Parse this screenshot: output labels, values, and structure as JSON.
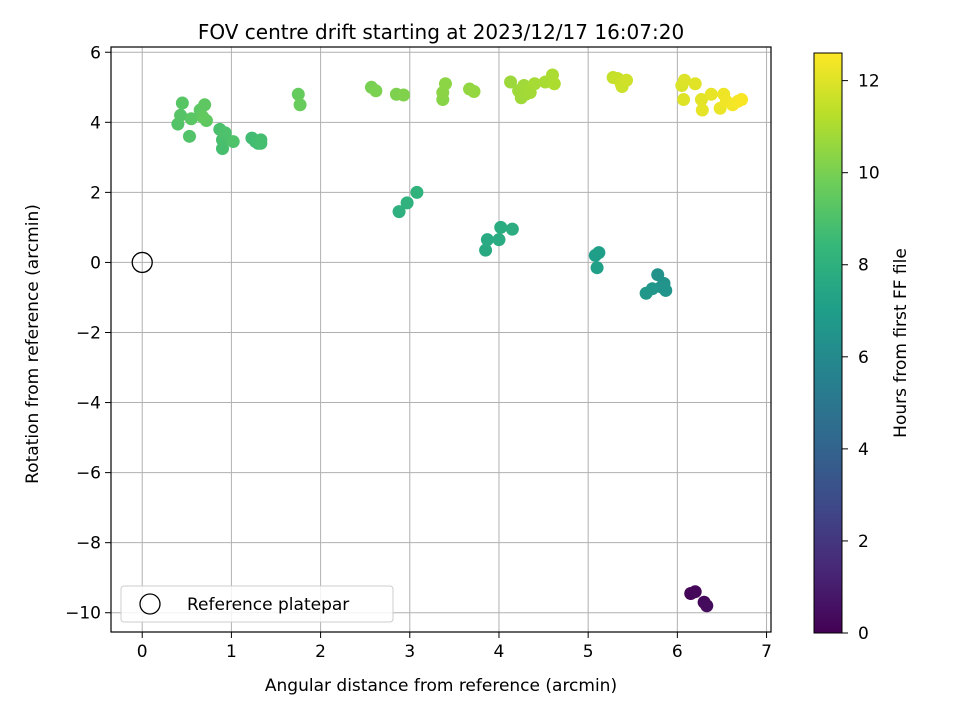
{
  "chart_data": {
    "type": "scatter",
    "title": "FOV centre drift starting at 2023/12/17 16:07:20",
    "xlabel": "Angular distance from reference (arcmin)",
    "ylabel": "Rotation from reference (arcmin)",
    "xlim": [
      -0.35,
      7.05
    ],
    "ylim": [
      -10.55,
      6.15
    ],
    "xticks": [
      0,
      1,
      2,
      3,
      4,
      5,
      6,
      7
    ],
    "yticks": [
      -10,
      -8,
      -6,
      -4,
      -2,
      0,
      2,
      4,
      6
    ],
    "xtick_labels": [
      "0",
      "1",
      "2",
      "3",
      "4",
      "5",
      "6",
      "7"
    ],
    "ytick_labels": [
      "−10",
      "−8",
      "−6",
      "−4",
      "−2",
      "0",
      "2",
      "4",
      "6"
    ],
    "grid": true,
    "legend": {
      "position": "lower-left",
      "entries": [
        {
          "label": "Reference platepar",
          "marker": "open-circle"
        }
      ]
    },
    "reference_point": {
      "x": 0,
      "y": 0
    },
    "colorbar": {
      "label": "Hours from first FF file",
      "range": [
        0,
        12.6
      ],
      "ticks": [
        0,
        2,
        4,
        6,
        8,
        10,
        12
      ],
      "tick_labels": [
        "0",
        "2",
        "4",
        "6",
        "8",
        "10",
        "12"
      ],
      "colormap": [
        "#440154",
        "#482878",
        "#3e4a89",
        "#31688e",
        "#26828e",
        "#1f9e89",
        "#35b779",
        "#6ece58",
        "#b5de2b",
        "#fde725"
      ]
    },
    "points": [
      {
        "x": 6.15,
        "y": -9.45,
        "hours": 0.1
      },
      {
        "x": 6.2,
        "y": -9.4,
        "hours": 0.2
      },
      {
        "x": 6.3,
        "y": -9.7,
        "hours": 0.3
      },
      {
        "x": 6.33,
        "y": -9.8,
        "hours": 0.4
      },
      {
        "x": 5.78,
        "y": -0.35,
        "hours": 6.4
      },
      {
        "x": 5.85,
        "y": -0.6,
        "hours": 6.45
      },
      {
        "x": 5.82,
        "y": -0.7,
        "hours": 6.5
      },
      {
        "x": 5.87,
        "y": -0.8,
        "hours": 6.55
      },
      {
        "x": 5.72,
        "y": -0.75,
        "hours": 6.6
      },
      {
        "x": 5.65,
        "y": -0.88,
        "hours": 6.65
      },
      {
        "x": 5.08,
        "y": 0.2,
        "hours": 7.0
      },
      {
        "x": 5.12,
        "y": 0.28,
        "hours": 7.05
      },
      {
        "x": 5.1,
        "y": -0.15,
        "hours": 7.1
      },
      {
        "x": 3.85,
        "y": 0.35,
        "hours": 7.6
      },
      {
        "x": 3.87,
        "y": 0.65,
        "hours": 7.65
      },
      {
        "x": 4.0,
        "y": 0.65,
        "hours": 7.7
      },
      {
        "x": 4.02,
        "y": 1.0,
        "hours": 7.75
      },
      {
        "x": 4.15,
        "y": 0.95,
        "hours": 7.8
      },
      {
        "x": 2.88,
        "y": 1.45,
        "hours": 8.0
      },
      {
        "x": 2.97,
        "y": 1.7,
        "hours": 8.05
      },
      {
        "x": 3.08,
        "y": 2.0,
        "hours": 8.1
      },
      {
        "x": 1.23,
        "y": 3.55,
        "hours": 8.7
      },
      {
        "x": 1.27,
        "y": 3.45,
        "hours": 8.72
      },
      {
        "x": 1.3,
        "y": 3.4,
        "hours": 8.75
      },
      {
        "x": 1.33,
        "y": 3.5,
        "hours": 8.78
      },
      {
        "x": 1.33,
        "y": 3.4,
        "hours": 8.8
      },
      {
        "x": 0.9,
        "y": 3.25,
        "hours": 8.85
      },
      {
        "x": 0.9,
        "y": 3.5,
        "hours": 8.9
      },
      {
        "x": 0.87,
        "y": 3.8,
        "hours": 8.95
      },
      {
        "x": 0.93,
        "y": 3.7,
        "hours": 9.0
      },
      {
        "x": 1.02,
        "y": 3.45,
        "hours": 9.05
      },
      {
        "x": 0.53,
        "y": 3.6,
        "hours": 9.1
      },
      {
        "x": 0.4,
        "y": 3.95,
        "hours": 9.15
      },
      {
        "x": 0.43,
        "y": 4.2,
        "hours": 9.2
      },
      {
        "x": 0.45,
        "y": 4.55,
        "hours": 9.25
      },
      {
        "x": 0.55,
        "y": 4.1,
        "hours": 9.3
      },
      {
        "x": 0.65,
        "y": 4.35,
        "hours": 9.35
      },
      {
        "x": 0.7,
        "y": 4.5,
        "hours": 9.4
      },
      {
        "x": 0.72,
        "y": 4.05,
        "hours": 9.45
      },
      {
        "x": 0.68,
        "y": 4.15,
        "hours": 9.5
      },
      {
        "x": 1.75,
        "y": 4.8,
        "hours": 9.6
      },
      {
        "x": 1.77,
        "y": 4.5,
        "hours": 9.65
      },
      {
        "x": 2.57,
        "y": 5.0,
        "hours": 10.0
      },
      {
        "x": 2.62,
        "y": 4.9,
        "hours": 10.05
      },
      {
        "x": 2.85,
        "y": 4.8,
        "hours": 10.1
      },
      {
        "x": 2.93,
        "y": 4.78,
        "hours": 10.15
      },
      {
        "x": 3.37,
        "y": 4.65,
        "hours": 10.3
      },
      {
        "x": 3.37,
        "y": 4.85,
        "hours": 10.35
      },
      {
        "x": 3.4,
        "y": 5.1,
        "hours": 10.4
      },
      {
        "x": 3.67,
        "y": 4.95,
        "hours": 10.5
      },
      {
        "x": 3.72,
        "y": 4.88,
        "hours": 10.55
      },
      {
        "x": 4.13,
        "y": 5.15,
        "hours": 10.7
      },
      {
        "x": 4.22,
        "y": 4.9,
        "hours": 10.72
      },
      {
        "x": 4.25,
        "y": 4.7,
        "hours": 10.75
      },
      {
        "x": 4.28,
        "y": 5.05,
        "hours": 10.78
      },
      {
        "x": 4.3,
        "y": 4.8,
        "hours": 10.8
      },
      {
        "x": 4.33,
        "y": 4.95,
        "hours": 10.82
      },
      {
        "x": 4.35,
        "y": 4.85,
        "hours": 10.85
      },
      {
        "x": 4.4,
        "y": 5.1,
        "hours": 10.9
      },
      {
        "x": 4.52,
        "y": 5.15,
        "hours": 10.95
      },
      {
        "x": 4.6,
        "y": 5.35,
        "hours": 11.0
      },
      {
        "x": 4.62,
        "y": 5.1,
        "hours": 11.05
      },
      {
        "x": 5.28,
        "y": 5.28,
        "hours": 11.5
      },
      {
        "x": 5.33,
        "y": 5.25,
        "hours": 11.55
      },
      {
        "x": 5.37,
        "y": 5.1,
        "hours": 11.6
      },
      {
        "x": 5.38,
        "y": 5.02,
        "hours": 11.65
      },
      {
        "x": 5.43,
        "y": 5.2,
        "hours": 11.7
      },
      {
        "x": 6.05,
        "y": 5.05,
        "hours": 11.9
      },
      {
        "x": 6.08,
        "y": 5.2,
        "hours": 11.95
      },
      {
        "x": 6.07,
        "y": 4.65,
        "hours": 12.0
      },
      {
        "x": 6.2,
        "y": 5.1,
        "hours": 12.05
      },
      {
        "x": 6.27,
        "y": 4.65,
        "hours": 12.1
      },
      {
        "x": 6.28,
        "y": 4.35,
        "hours": 12.15
      },
      {
        "x": 6.38,
        "y": 4.8,
        "hours": 12.2
      },
      {
        "x": 6.48,
        "y": 4.4,
        "hours": 12.25
      },
      {
        "x": 6.52,
        "y": 4.8,
        "hours": 12.3
      },
      {
        "x": 6.55,
        "y": 4.6,
        "hours": 12.35
      },
      {
        "x": 6.62,
        "y": 4.5,
        "hours": 12.4
      },
      {
        "x": 6.68,
        "y": 4.6,
        "hours": 12.45
      },
      {
        "x": 6.72,
        "y": 4.65,
        "hours": 12.5
      }
    ]
  }
}
